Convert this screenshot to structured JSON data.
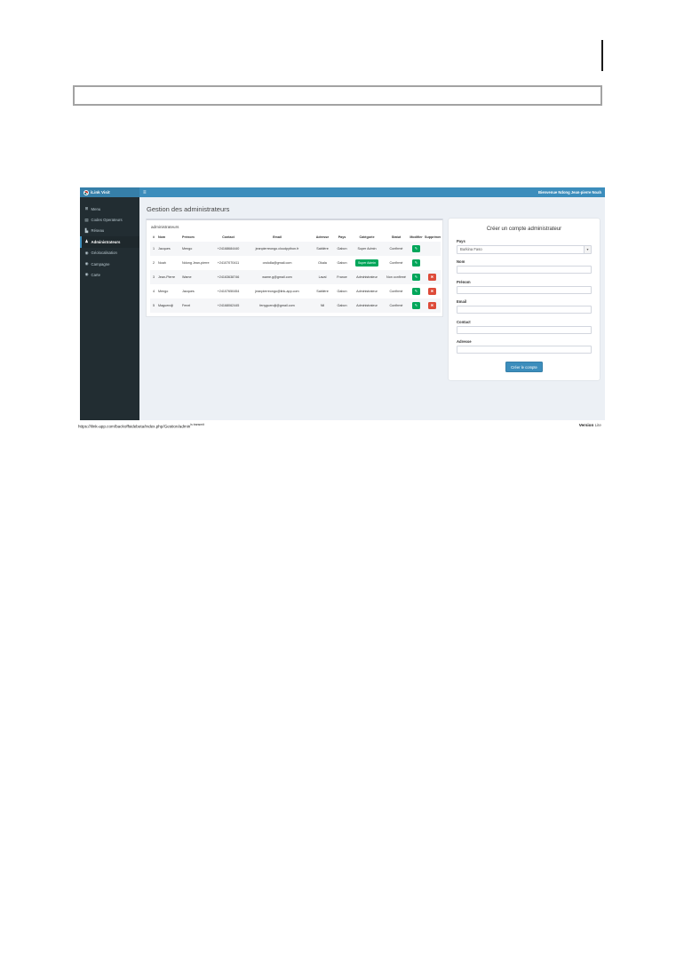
{
  "icons": {
    "hamburger-icon": "≡",
    "dashboard-icon": "⊞",
    "codes-icon": "▤",
    "chart-icon": "▙",
    "user-icon": "♟",
    "map-pin-icon": "◉",
    "pencil-icon": "✎",
    "trash-icon": "✖",
    "chevron-down-icon": "▾"
  },
  "app": {
    "brand": "iLink Visit",
    "welcome": "Bienvenue Ndong Jean-pierre Noah",
    "page_title": "Gestion des administrateurs",
    "colors": {
      "header": "#3c8dbc",
      "logo_bg": "#367fa9",
      "sidebar": "#222d32",
      "sidebar_active": "#1e282c",
      "content_bg": "#ecf0f5",
      "success": "#00a65a",
      "danger": "#dd4b39",
      "primary": "#3c8dbc"
    },
    "sidebar": {
      "items": [
        {
          "label": "Menu",
          "icon": "dashboard-icon",
          "active": false
        },
        {
          "label": "Codes Operateurs",
          "icon": "codes-icon",
          "active": false
        },
        {
          "label": "Réseau",
          "icon": "chart-icon",
          "active": false
        },
        {
          "label": "Administrateurs",
          "icon": "user-icon",
          "active": true
        },
        {
          "label": "Géolocalisation",
          "icon": "map-pin-icon",
          "active": false
        },
        {
          "label": "Campagne",
          "icon": "map-pin-icon",
          "active": false
        },
        {
          "label": "Carte",
          "icon": "map-pin-icon",
          "active": false
        }
      ]
    },
    "panel": {
      "title": "administrateurs",
      "table": {
        "headers": [
          "#",
          "Nom",
          "Prénom",
          "Contact",
          "Email",
          "Adresse",
          "Pays",
          "Catégorie",
          "Statut",
          "Modifier",
          "Supprimer"
        ],
        "rows": [
          {
            "num": "1",
            "nom": "Jacques",
            "prenom": "Mengo",
            "contact": "+24168684440",
            "email": "jeanpierreongo.cloudpython.fr",
            "adresse": "Sablière",
            "pays": "Gabon",
            "categorie": "Super Admin",
            "categorie_badge": false,
            "statut": "Confirmé",
            "can_edit": true,
            "can_delete": false
          },
          {
            "num": "2",
            "nom": "Noah",
            "prenom": "Ndong Jean-pierre",
            "contact": "+24107070411",
            "email": "ondo8a@gmail.com",
            "adresse": "Okala",
            "pays": "Gabon",
            "categorie": "Super Admin",
            "categorie_badge": true,
            "statut": "Confirmé",
            "can_edit": true,
            "can_delete": false
          },
          {
            "num": "3",
            "nom": "Jean-Pierre",
            "prenom": "Wame",
            "contact": "+24163638746",
            "email": "wame.g@gmail.com",
            "adresse": "Laval",
            "pays": "France",
            "categorie": "Administrateur",
            "categorie_badge": false,
            "statut": "Non confirmé",
            "can_edit": true,
            "can_delete": true
          },
          {
            "num": "4",
            "nom": "Mengo",
            "prenom": "Jacques",
            "contact": "+24107650454",
            "email": "jeanpierreongo@link-app.com",
            "adresse": "Sablière",
            "pays": "Gabon",
            "categorie": "Administrateur",
            "categorie_badge": false,
            "statut": "Confirmé",
            "can_edit": true,
            "can_delete": true
          },
          {
            "num": "5",
            "nom": "Maguendji",
            "prenom": "Fenel",
            "contact": "+24168062445",
            "email": "fenyguendji@gmail.com",
            "adresse": "Nil",
            "pays": "Gabon",
            "categorie": "Administrateur",
            "categorie_badge": false,
            "statut": "Confirmé",
            "can_edit": true,
            "can_delete": true
          }
        ]
      }
    },
    "form": {
      "title": "Créer un compte administrateur",
      "fields": [
        {
          "label": "Pays",
          "type": "select",
          "value": "Burkina Faso"
        },
        {
          "label": "Nom",
          "type": "text",
          "value": ""
        },
        {
          "label": "Prénom",
          "type": "text",
          "value": ""
        },
        {
          "label": "Email",
          "type": "text",
          "value": ""
        },
        {
          "label": "Contact",
          "type": "text",
          "value": ""
        },
        {
          "label": "Adresse",
          "type": "text",
          "value": ""
        }
      ],
      "submit_label": "Créer le compte"
    }
  },
  "footer": {
    "url": "https://ilink-app.com/backoffsidebeta/index.php/Gestion/admin",
    "url_note": "is transmit",
    "version_label": "Version",
    "version_value": "Lite"
  }
}
